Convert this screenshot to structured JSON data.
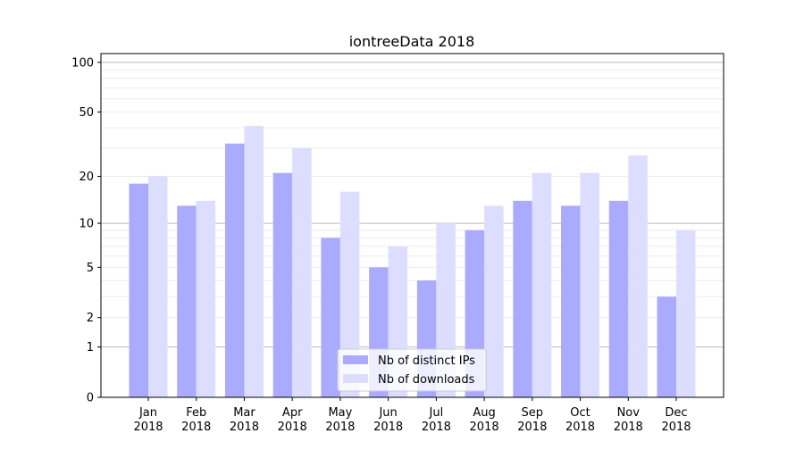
{
  "chart_data": {
    "type": "bar",
    "title": "iontreeData 2018",
    "xlabel": "",
    "ylabel": "",
    "yscale": "log10(1+y)",
    "ylim": [
      0,
      113
    ],
    "yticks": [
      0,
      1,
      2,
      5,
      10,
      20,
      50,
      100
    ],
    "grid": "on (major at 1, 10, 100; minor light)",
    "legend_position": "bottom-center",
    "categories": [
      "Jan\n2018",
      "Feb\n2018",
      "Mar\n2018",
      "Apr\n2018",
      "May\n2018",
      "Jun\n2018",
      "Jul\n2018",
      "Aug\n2018",
      "Sep\n2018",
      "Oct\n2018",
      "Nov\n2018",
      "Dec\n2018"
    ],
    "series": [
      {
        "name": "Nb of distinct IPs",
        "color": "#aaaaff",
        "values": [
          18,
          13,
          32,
          21,
          8,
          5,
          4,
          9,
          14,
          13,
          14,
          3
        ]
      },
      {
        "name": "Nb of downloads",
        "color": "#ddddff",
        "values": [
          20,
          14,
          41,
          30,
          16,
          7,
          10,
          13,
          21,
          21,
          27,
          9
        ]
      }
    ]
  }
}
